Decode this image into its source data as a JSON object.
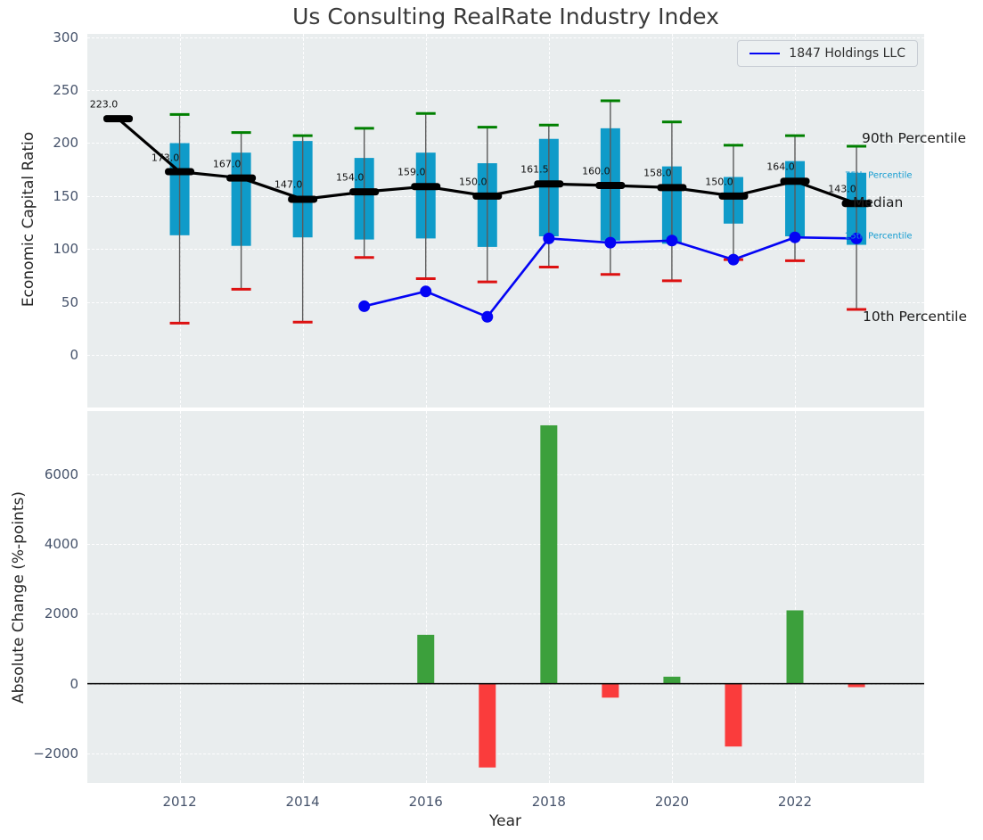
{
  "figure_title": "Us Consulting RealRate Industry Index",
  "legend": {
    "label": "1847 Holdings LLC"
  },
  "colors": {
    "plot_bg": "#e9edee",
    "grid": "#ffffff",
    "box": "#0f9bc9",
    "whisker": "#5a5a5a",
    "cap_high": "#008000",
    "cap_low": "#dd1111",
    "median": "#000000",
    "company": "#0404f4",
    "annotation_minor": "#119bd0",
    "tick_label": "#46536b",
    "bar_positive": "#3ca03c",
    "bar_negative": "#fa3c3c"
  },
  "chart_data": [
    {
      "type": "box-percentile-timeseries",
      "title": "Us Consulting RealRate Industry Index",
      "ylabel": "Economic Capital Ratio",
      "ylim": [
        -49.6,
        303.1
      ],
      "xlim": [
        2010.5,
        2024.1
      ],
      "grid": true,
      "legend_position": "upper right",
      "ytick_values": [
        0,
        50,
        100,
        150,
        200,
        250,
        300
      ],
      "ytick_labels": [
        "0",
        "50",
        "100",
        "150",
        "200",
        "250",
        "300"
      ],
      "xtick_values": [
        2012,
        2014,
        2016,
        2018,
        2020,
        2022
      ],
      "xtick_labels": [
        "2012",
        "2014",
        "2016",
        "2018",
        "2020",
        "2022"
      ],
      "years": [
        2011,
        2012,
        2013,
        2014,
        2015,
        2016,
        2017,
        2018,
        2019,
        2020,
        2021,
        2022,
        2023
      ],
      "boxes": {
        "median": [
          223,
          173,
          167,
          147,
          154,
          159,
          150,
          161.5,
          160,
          158,
          150,
          164,
          143
        ],
        "median_labels": [
          "223.0",
          "173.0",
          "167.0",
          "147.0",
          "154.0",
          "159.0",
          "150.0",
          "161.5",
          "160.0",
          "158.0",
          "150.0",
          "164.0",
          "143.0"
        ],
        "p90": [
          null,
          227,
          210,
          207,
          214,
          228,
          215,
          217,
          240,
          220,
          198,
          207,
          197
        ],
        "p75": [
          null,
          200,
          191,
          202,
          186,
          191,
          181,
          204,
          214,
          178,
          168,
          183,
          172
        ],
        "p25": [
          null,
          113,
          103,
          111,
          109,
          110,
          102,
          112,
          108,
          105,
          124,
          112,
          104
        ],
        "p10": [
          null,
          30,
          62,
          31,
          92,
          72,
          69,
          83,
          76,
          70,
          90,
          89,
          43
        ]
      },
      "company_line": {
        "name": "1847 Holdings LLC",
        "years": [
          2015,
          2016,
          2017,
          2018,
          2019,
          2020,
          2021,
          2022,
          2023
        ],
        "values": [
          46,
          60,
          36,
          110,
          106,
          108,
          90,
          111,
          110
        ]
      },
      "percentile_annotations": [
        {
          "text": "90th Percentile",
          "y": 205,
          "style": "major"
        },
        {
          "text": "75th Percentile",
          "y": 169,
          "style": "minor"
        },
        {
          "text": "Median",
          "y": 144,
          "style": "major"
        },
        {
          "text": "25th Percentile",
          "y": 112,
          "style": "minor"
        },
        {
          "text": "10th Percentile",
          "y": 36,
          "style": "major"
        }
      ]
    },
    {
      "type": "bar",
      "ylabel": "Absolute Change (%-points)",
      "xlabel": "Year",
      "ylim": [
        -2843,
        7808
      ],
      "xlim": [
        2010.5,
        2024.1
      ],
      "grid": true,
      "ytick_values": [
        -2000,
        0,
        2000,
        4000,
        6000
      ],
      "ytick_labels": [
        "−2000",
        "0",
        "2000",
        "4000",
        "6000"
      ],
      "xtick_values": [
        2012,
        2014,
        2016,
        2018,
        2020,
        2022
      ],
      "xtick_labels": [
        "2012",
        "2014",
        "2016",
        "2018",
        "2020",
        "2022"
      ],
      "years": [
        2016,
        2017,
        2018,
        2019,
        2020,
        2021,
        2022,
        2023
      ],
      "values": [
        1400,
        -2400,
        7400,
        -400,
        200,
        -1800,
        2100,
        -100
      ]
    }
  ]
}
